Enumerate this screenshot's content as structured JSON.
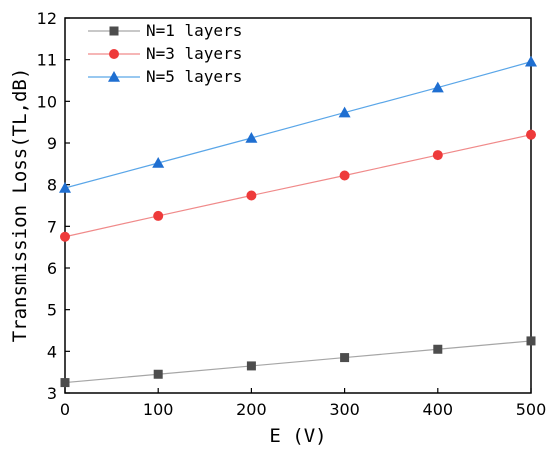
{
  "chart_data": {
    "type": "line",
    "title": "",
    "xlabel": "E (V)",
    "ylabel": "Transmission Loss(TL,dB)",
    "x": [
      0,
      100,
      200,
      300,
      400,
      500
    ],
    "xlim": [
      0,
      500
    ],
    "ylim": [
      3,
      12
    ],
    "xticks": [
      0,
      100,
      200,
      300,
      400,
      500
    ],
    "yticks": [
      3,
      4,
      5,
      6,
      7,
      8,
      9,
      10,
      11,
      12
    ],
    "grid": false,
    "legend_position": "top-left",
    "series": [
      {
        "name": "N=1 layers",
        "marker": "square",
        "color": "#4d4d4d",
        "line_color": "#a6a6a6",
        "values": [
          3.25,
          3.45,
          3.65,
          3.85,
          4.05,
          4.25
        ]
      },
      {
        "name": "N=3 layers",
        "marker": "circle",
        "color": "#ee3a3a",
        "line_color": "#f08a8a",
        "values": [
          6.75,
          7.25,
          7.74,
          8.22,
          8.71,
          9.2
        ]
      },
      {
        "name": "N=5 layers",
        "marker": "triangle",
        "color": "#1f6fd1",
        "line_color": "#5aa6e8",
        "values": [
          7.92,
          8.52,
          9.12,
          9.73,
          10.33,
          10.95
        ]
      }
    ]
  }
}
